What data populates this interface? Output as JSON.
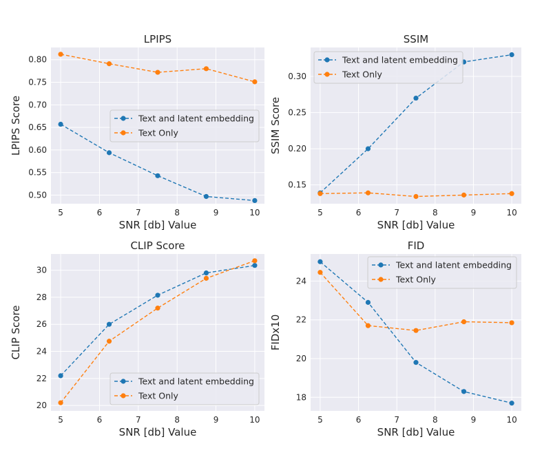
{
  "chart_data": [
    {
      "type": "line",
      "title": "LPIPS",
      "xlabel": "SNR [db] Value",
      "ylabel": "LPIPS Score",
      "x": [
        5,
        6.25,
        7.5,
        8.75,
        10
      ],
      "xticks": [
        5,
        6,
        7,
        8,
        9,
        10
      ],
      "xlim": [
        4.75,
        10.25
      ],
      "yticks": [
        0.5,
        0.55,
        0.6,
        0.65,
        0.7,
        0.75,
        0.8
      ],
      "ytick_labels": [
        "0.50",
        "0.55",
        "0.60",
        "0.65",
        "0.70",
        "0.75",
        "0.80"
      ],
      "ylim": [
        0.481,
        0.827
      ],
      "legend_position": "center-right",
      "series": [
        {
          "name": "Text and latent embedding",
          "color": "#1f77b4",
          "values": [
            0.657,
            0.594,
            0.543,
            0.497,
            0.488
          ]
        },
        {
          "name": "Text Only",
          "color": "#ff7f0e",
          "values": [
            0.812,
            0.791,
            0.772,
            0.78,
            0.751
          ]
        }
      ]
    },
    {
      "type": "line",
      "title": "SSIM",
      "xlabel": "SNR [db] Value",
      "ylabel": "SSIM Score",
      "x": [
        5,
        6.25,
        7.5,
        8.75,
        10
      ],
      "xticks": [
        5,
        6,
        7,
        8,
        9,
        10
      ],
      "xlim": [
        4.75,
        10.25
      ],
      "yticks": [
        0.15,
        0.2,
        0.25,
        0.3
      ],
      "ytick_labels": [
        "0.15",
        "0.20",
        "0.25",
        "0.30"
      ],
      "ylim": [
        0.124,
        0.34
      ],
      "legend_position": "top-left",
      "series": [
        {
          "name": "Text and latent embedding",
          "color": "#1f77b4",
          "values": [
            0.139,
            0.2,
            0.27,
            0.32,
            0.33
          ]
        },
        {
          "name": "Text Only",
          "color": "#ff7f0e",
          "values": [
            0.138,
            0.139,
            0.134,
            0.136,
            0.138
          ]
        }
      ]
    },
    {
      "type": "line",
      "title": "CLIP Score",
      "xlabel": "SNR [db] Value",
      "ylabel": "CLIP Score",
      "x": [
        5,
        6.25,
        7.5,
        8.75,
        10
      ],
      "xticks": [
        5,
        6,
        7,
        8,
        9,
        10
      ],
      "xlim": [
        4.75,
        10.25
      ],
      "yticks": [
        20,
        22,
        24,
        26,
        28,
        30
      ],
      "ytick_labels": [
        "20",
        "22",
        "24",
        "26",
        "28",
        "30"
      ],
      "ylim": [
        19.6,
        31.2
      ],
      "legend_position": "bottom-right",
      "series": [
        {
          "name": "Text and latent embedding",
          "color": "#1f77b4",
          "values": [
            22.2,
            26.0,
            28.15,
            29.8,
            30.35
          ]
        },
        {
          "name": "Text Only",
          "color": "#ff7f0e",
          "values": [
            20.2,
            24.75,
            27.2,
            29.4,
            30.7
          ]
        }
      ]
    },
    {
      "type": "line",
      "title": "FID",
      "xlabel": "SNR [db] Value",
      "ylabel": "FIDx10",
      "x": [
        5,
        6.25,
        7.5,
        8.75,
        10
      ],
      "xticks": [
        5,
        6,
        7,
        8,
        9,
        10
      ],
      "xlim": [
        4.75,
        10.25
      ],
      "yticks": [
        18,
        20,
        22,
        24
      ],
      "ytick_labels": [
        "18",
        "20",
        "22",
        "24"
      ],
      "ylim": [
        17.3,
        25.4
      ],
      "legend_position": "top-right",
      "series": [
        {
          "name": "Text and latent embedding",
          "color": "#1f77b4",
          "values": [
            25.0,
            22.9,
            19.8,
            18.3,
            17.7
          ]
        },
        {
          "name": "Text Only",
          "color": "#ff7f0e",
          "values": [
            24.45,
            21.7,
            21.45,
            21.9,
            21.85
          ]
        }
      ]
    }
  ]
}
